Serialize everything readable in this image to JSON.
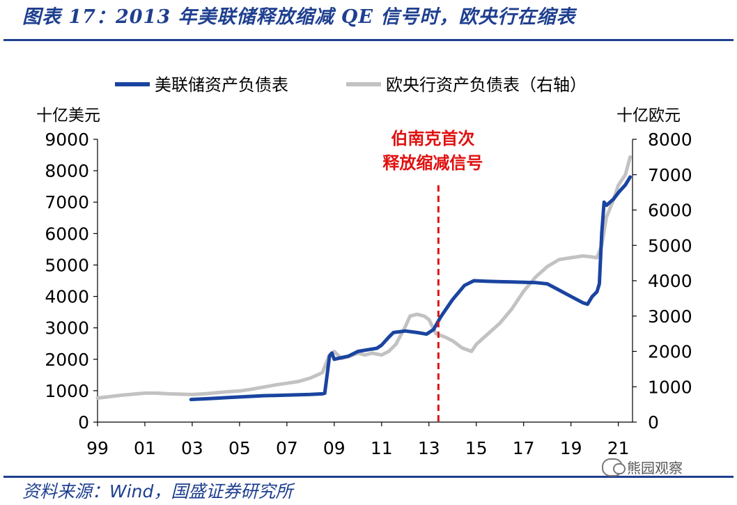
{
  "page": {
    "title": "图表 17：2013 年美联储释放缩减 QE 信号时，欧央行在缩表",
    "source": "资料来源：Wind，国盛证券研究所",
    "watermark": "熊园观察",
    "watermark_icon": "wechat-icon"
  },
  "chart_data": {
    "type": "line",
    "title": "",
    "legend_position": "top",
    "grid": false,
    "y_left_label": "十亿美元",
    "y_right_label": "十亿欧元",
    "y_left_range": [
      0,
      9000
    ],
    "y_right_range": [
      0,
      8000
    ],
    "x_range": [
      1999,
      2021.6
    ],
    "x_ticks": [
      "99",
      "01",
      "03",
      "05",
      "07",
      "09",
      "11",
      "13",
      "15",
      "17",
      "19",
      "21"
    ],
    "y_left_ticks": [
      "0",
      "1000",
      "2000",
      "3000",
      "4000",
      "5000",
      "6000",
      "7000",
      "8000",
      "9000"
    ],
    "y_right_ticks": [
      "0",
      "1000",
      "2000",
      "3000",
      "4000",
      "5000",
      "6000",
      "7000",
      "8000"
    ],
    "annotation": {
      "lines": [
        "伯南克首次",
        "释放缩减信号"
      ],
      "x": 2013.4,
      "color": "#e01010"
    },
    "series": [
      {
        "name": "美联储资产负债表",
        "axis": "left",
        "color": "#1a44a0",
        "points": [
          [
            2002.95,
            720
          ],
          [
            2003.5,
            740
          ],
          [
            2004,
            760
          ],
          [
            2004.5,
            780
          ],
          [
            2005,
            800
          ],
          [
            2005.5,
            820
          ],
          [
            2006,
            840
          ],
          [
            2006.5,
            850
          ],
          [
            2007,
            860
          ],
          [
            2007.5,
            870
          ],
          [
            2008,
            880
          ],
          [
            2008.5,
            900
          ],
          [
            2008.6,
            920
          ],
          [
            2008.7,
            1500
          ],
          [
            2008.8,
            2100
          ],
          [
            2008.9,
            2200
          ],
          [
            2009,
            2000
          ],
          [
            2009.3,
            2050
          ],
          [
            2009.6,
            2100
          ],
          [
            2010,
            2250
          ],
          [
            2010.4,
            2300
          ],
          [
            2010.8,
            2350
          ],
          [
            2011,
            2450
          ],
          [
            2011.3,
            2700
          ],
          [
            2011.5,
            2850
          ],
          [
            2012,
            2900
          ],
          [
            2012.5,
            2850
          ],
          [
            2012.9,
            2800
          ],
          [
            2013.2,
            2950
          ],
          [
            2013.5,
            3350
          ],
          [
            2014,
            3900
          ],
          [
            2014.5,
            4350
          ],
          [
            2014.9,
            4500
          ],
          [
            2015.5,
            4480
          ],
          [
            2016,
            4470
          ],
          [
            2016.5,
            4460
          ],
          [
            2017,
            4450
          ],
          [
            2017.5,
            4440
          ],
          [
            2018,
            4400
          ],
          [
            2018.5,
            4200
          ],
          [
            2019,
            4000
          ],
          [
            2019.5,
            3800
          ],
          [
            2019.7,
            3750
          ],
          [
            2019.9,
            4000
          ],
          [
            2020.1,
            4150
          ],
          [
            2020.2,
            4400
          ],
          [
            2020.3,
            6000
          ],
          [
            2020.4,
            7000
          ],
          [
            2020.5,
            6900
          ],
          [
            2020.8,
            7100
          ],
          [
            2021,
            7300
          ],
          [
            2021.3,
            7550
          ],
          [
            2021.5,
            7800
          ]
        ]
      },
      {
        "name": "欧央行资产负债表（右轴）",
        "axis": "right",
        "color": "#c2c2c2",
        "points": [
          [
            1999,
            680
          ],
          [
            1999.5,
            720
          ],
          [
            2000,
            760
          ],
          [
            2000.5,
            790
          ],
          [
            2001,
            820
          ],
          [
            2001.5,
            820
          ],
          [
            2002,
            800
          ],
          [
            2002.5,
            790
          ],
          [
            2003,
            780
          ],
          [
            2003.5,
            800
          ],
          [
            2004,
            830
          ],
          [
            2004.5,
            860
          ],
          [
            2005,
            880
          ],
          [
            2005.5,
            930
          ],
          [
            2006,
            990
          ],
          [
            2006.5,
            1050
          ],
          [
            2007,
            1100
          ],
          [
            2007.5,
            1150
          ],
          [
            2008,
            1250
          ],
          [
            2008.5,
            1400
          ],
          [
            2008.8,
            1900
          ],
          [
            2009,
            2000
          ],
          [
            2009.3,
            1800
          ],
          [
            2009.6,
            1850
          ],
          [
            2010,
            1950
          ],
          [
            2010.3,
            1900
          ],
          [
            2010.6,
            1950
          ],
          [
            2011,
            1900
          ],
          [
            2011.3,
            2000
          ],
          [
            2011.6,
            2200
          ],
          [
            2012,
            2700
          ],
          [
            2012.2,
            3000
          ],
          [
            2012.5,
            3050
          ],
          [
            2012.8,
            3000
          ],
          [
            2013,
            2900
          ],
          [
            2013.3,
            2500
          ],
          [
            2013.7,
            2400
          ],
          [
            2014,
            2300
          ],
          [
            2014.4,
            2100
          ],
          [
            2014.8,
            2000
          ],
          [
            2015,
            2200
          ],
          [
            2015.5,
            2500
          ],
          [
            2016,
            2800
          ],
          [
            2016.5,
            3200
          ],
          [
            2017,
            3700
          ],
          [
            2017.5,
            4100
          ],
          [
            2018,
            4400
          ],
          [
            2018.5,
            4600
          ],
          [
            2019,
            4650
          ],
          [
            2019.5,
            4700
          ],
          [
            2019.8,
            4680
          ],
          [
            2020.1,
            4650
          ],
          [
            2020.3,
            5000
          ],
          [
            2020.5,
            5800
          ],
          [
            2020.8,
            6300
          ],
          [
            2021,
            6700
          ],
          [
            2021.3,
            7000
          ],
          [
            2021.5,
            7500
          ]
        ]
      }
    ]
  }
}
